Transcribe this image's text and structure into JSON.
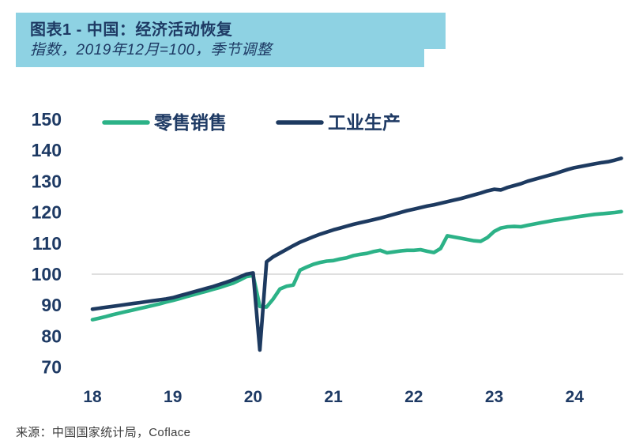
{
  "header": {
    "title": "图表1 - 中国：经济活动恢复",
    "subtitle": "指数，2019年12月=100，季节调整",
    "bg_color": "#8ed2e3",
    "text_color": "#1e3a64"
  },
  "source": {
    "label": "来源：中国国家统计局，Coflace"
  },
  "chart_data": {
    "type": "line",
    "title": "中国：经济活动恢复",
    "subtitle": "指数，2019年12月=100，季节调整",
    "x_start": "2018-01",
    "x_frequency": "monthly",
    "x_tick_labels": [
      "18",
      "19",
      "20",
      "21",
      "22",
      "23",
      "24"
    ],
    "y_ticks": [
      150,
      140,
      130,
      120,
      110,
      100,
      90,
      80,
      70
    ],
    "ylim": [
      65,
      155
    ],
    "grid_y": [
      100
    ],
    "grid_color": "#cccccc",
    "axis_label_color": "#1e3a64",
    "legend_position": "top",
    "series": [
      {
        "name": "零售销售",
        "color": "#2cb287",
        "values": [
          85.3,
          85.8,
          86.3,
          86.9,
          87.4,
          87.9,
          88.4,
          88.9,
          89.4,
          89.9,
          90.4,
          91.0,
          91.5,
          92.1,
          92.7,
          93.3,
          93.9,
          94.5,
          95.1,
          95.7,
          96.4,
          97.1,
          98.1,
          99.2,
          99.6,
          89.6,
          89.4,
          92.0,
          95.2,
          96.1,
          96.5,
          101.3,
          102.3,
          103.2,
          103.8,
          104.2,
          104.4,
          104.9,
          105.3,
          106.0,
          106.4,
          106.7,
          107.3,
          107.7,
          106.9,
          107.2,
          107.5,
          107.7,
          107.7,
          107.9,
          107.4,
          107.0,
          108.3,
          112.4,
          112.0,
          111.6,
          111.2,
          110.8,
          110.6,
          111.8,
          113.8,
          114.9,
          115.3,
          115.4,
          115.3,
          115.8,
          116.2,
          116.6,
          117.0,
          117.4,
          117.7,
          118.0,
          118.4,
          118.7,
          119.0,
          119.3,
          119.5,
          119.7,
          119.9,
          120.2
        ]
      },
      {
        "name": "工业生产",
        "color": "#1d3a60",
        "values": [
          88.7,
          89.0,
          89.3,
          89.6,
          89.9,
          90.2,
          90.5,
          90.8,
          91.1,
          91.4,
          91.7,
          92.0,
          92.4,
          93.0,
          93.6,
          94.2,
          94.8,
          95.4,
          96.0,
          96.7,
          97.4,
          98.2,
          99.1,
          100.0,
          100.4,
          75.5,
          104.0,
          105.6,
          106.8,
          108.0,
          109.2,
          110.3,
          111.2,
          112.1,
          112.9,
          113.6,
          114.3,
          114.9,
          115.5,
          116.1,
          116.6,
          117.1,
          117.6,
          118.1,
          118.7,
          119.3,
          119.9,
          120.5,
          121.0,
          121.5,
          122.0,
          122.4,
          122.9,
          123.4,
          123.9,
          124.4,
          125.0,
          125.6,
          126.2,
          126.9,
          127.4,
          127.2,
          128.0,
          128.6,
          129.2,
          130.0,
          130.6,
          131.2,
          131.8,
          132.4,
          133.1,
          133.8,
          134.4,
          134.8,
          135.2,
          135.6,
          136.0,
          136.3,
          136.8,
          137.4
        ]
      }
    ]
  }
}
